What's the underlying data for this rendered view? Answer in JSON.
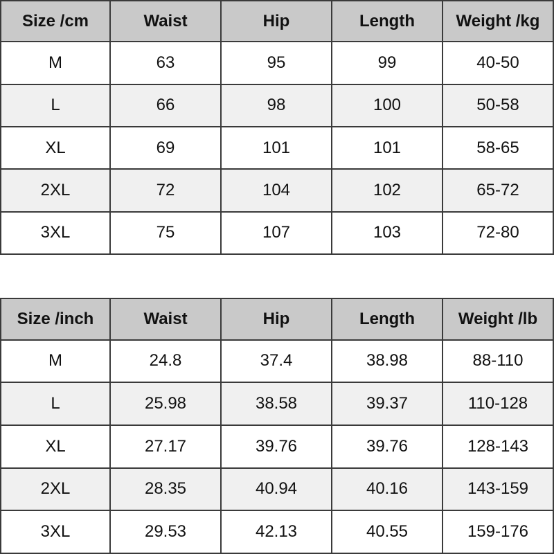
{
  "tables": [
    {
      "header": [
        "Size /cm",
        "Waist",
        "Hip",
        "Length",
        "Weight /kg"
      ],
      "rows": [
        [
          "M",
          "63",
          "95",
          "99",
          "40-50"
        ],
        [
          "L",
          "66",
          "98",
          "100",
          "50-58"
        ],
        [
          "XL",
          "69",
          "101",
          "101",
          "58-65"
        ],
        [
          "2XL",
          "72",
          "104",
          "102",
          "65-72"
        ],
        [
          "3XL",
          "75",
          "107",
          "103",
          "72-80"
        ]
      ]
    },
    {
      "header": [
        "Size /inch",
        "Waist",
        "Hip",
        "Length",
        "Weight /lb"
      ],
      "rows": [
        [
          "M",
          "24.8",
          "37.4",
          "38.98",
          "88-110"
        ],
        [
          "L",
          "25.98",
          "38.58",
          "39.37",
          "110-128"
        ],
        [
          "XL",
          "27.17",
          "39.76",
          "39.76",
          "128-143"
        ],
        [
          "2XL",
          "28.35",
          "40.94",
          "40.16",
          "143-159"
        ],
        [
          "3XL",
          "29.53",
          "42.13",
          "40.55",
          "159-176"
        ]
      ]
    }
  ]
}
